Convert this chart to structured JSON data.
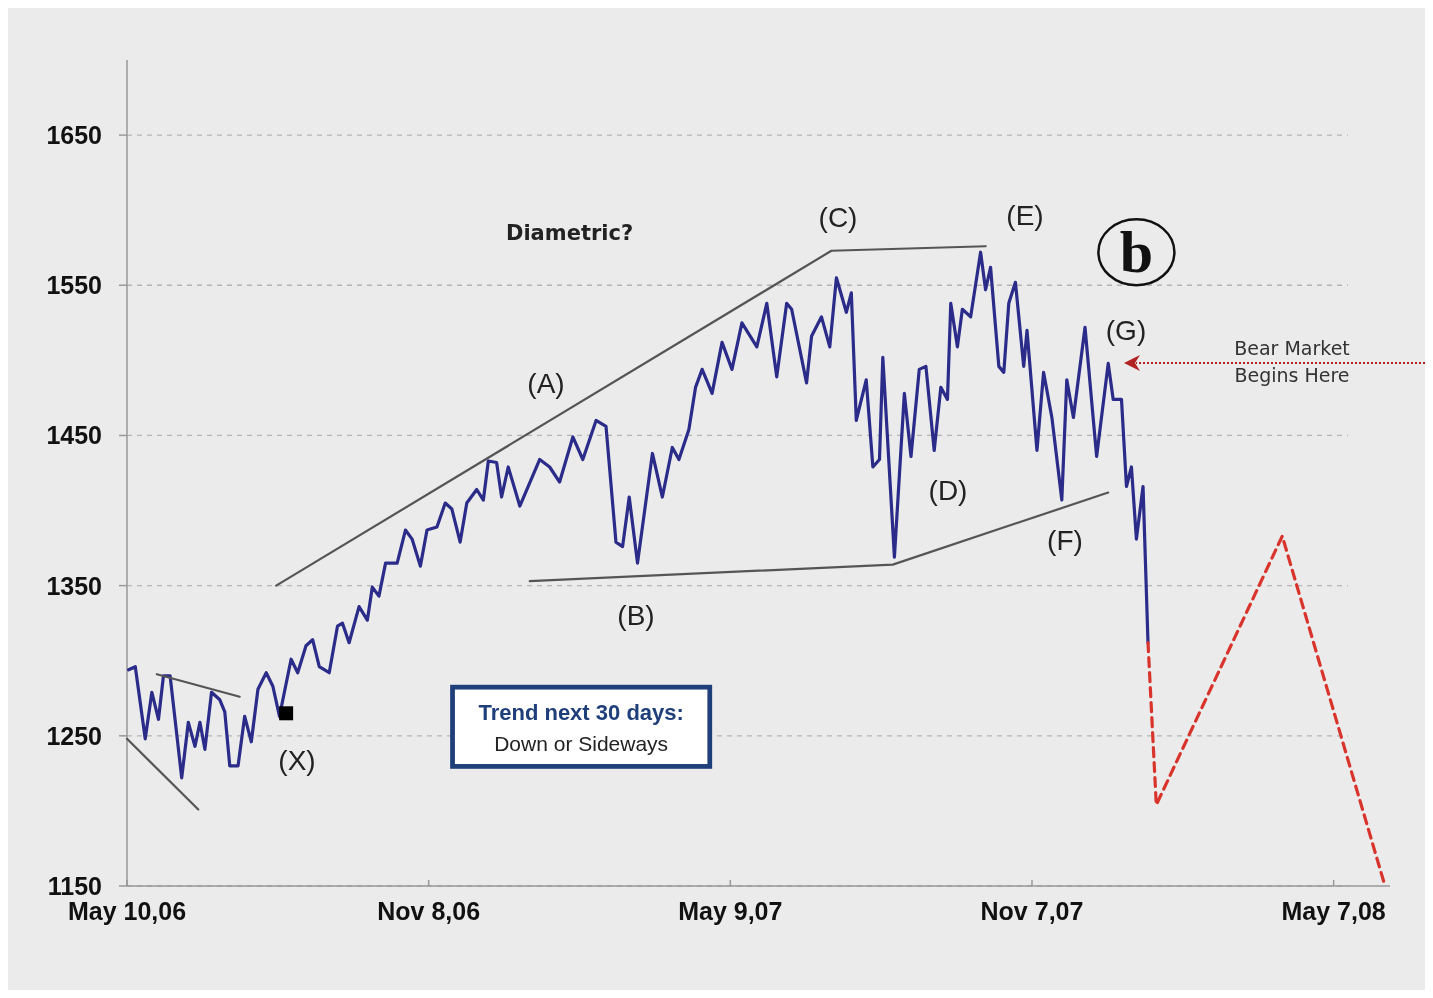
{
  "chart_data": {
    "type": "line",
    "xlim": [
      "2006-05-10",
      "2008-06-10"
    ],
    "ylim": [
      1150,
      1700
    ],
    "xticks": [
      {
        "value": "2006-05-10",
        "label": "May 10,06"
      },
      {
        "value": "2006-11-08",
        "label": "Nov 8,06"
      },
      {
        "value": "2007-05-09",
        "label": "May 9,07"
      },
      {
        "value": "2007-11-07",
        "label": "Nov 7,07"
      },
      {
        "value": "2008-05-07",
        "label": "May 7,08"
      }
    ],
    "yticks": [
      1150,
      1250,
      1350,
      1450,
      1550,
      1650
    ],
    "grid": "y",
    "marker": "none",
    "series": [
      {
        "color": "#2b2b8a",
        "x": [
          "2006-05-11",
          "2006-05-15",
          "2006-05-21",
          "2006-05-25",
          "2006-05-29",
          "2006-06-01",
          "2006-06-05",
          "2006-06-12",
          "2006-06-16",
          "2006-06-20",
          "2006-06-23",
          "2006-06-26",
          "2006-06-30",
          "2006-07-05",
          "2006-07-08",
          "2006-07-11",
          "2006-07-16",
          "2006-07-20",
          "2006-07-24",
          "2006-07-28",
          "2006-08-02",
          "2006-08-06",
          "2006-08-10",
          "2006-08-17",
          "2006-08-21",
          "2006-08-26",
          "2006-08-30",
          "2006-09-03",
          "2006-09-09",
          "2006-09-14",
          "2006-09-17",
          "2006-09-21",
          "2006-09-27",
          "2006-10-02",
          "2006-10-05",
          "2006-10-09",
          "2006-10-13",
          "2006-10-20",
          "2006-10-25",
          "2006-10-29",
          "2006-11-03",
          "2006-11-07",
          "2006-11-13",
          "2006-11-18",
          "2006-11-22",
          "2006-11-27",
          "2006-12-01",
          "2006-12-07",
          "2006-12-11",
          "2006-12-14",
          "2006-12-19",
          "2006-12-22",
          "2006-12-26",
          "2007-01-02",
          "2007-01-14",
          "2007-01-20",
          "2007-01-26",
          "2007-02-03",
          "2007-02-09",
          "2007-02-17",
          "2007-02-23",
          "2007-03-01",
          "2007-03-05",
          "2007-03-09",
          "2007-03-14",
          "2007-03-23",
          "2007-03-29",
          "2007-04-04",
          "2007-04-08",
          "2007-04-14",
          "2007-04-18",
          "2007-04-22",
          "2007-04-28",
          "2007-05-04",
          "2007-05-10",
          "2007-05-16",
          "2007-05-25",
          "2007-05-31",
          "2007-06-06",
          "2007-06-12",
          "2007-06-15",
          "2007-06-24",
          "2007-06-27",
          "2007-07-03",
          "2007-07-08",
          "2007-07-12",
          "2007-07-18",
          "2007-07-21",
          "2007-07-24",
          "2007-07-30",
          "2007-08-03",
          "2007-08-07",
          "2007-08-09",
          "2007-08-16",
          "2007-08-22",
          "2007-08-26",
          "2007-08-31",
          "2007-09-04",
          "2007-09-09",
          "2007-09-13",
          "2007-09-17",
          "2007-09-19",
          "2007-09-23",
          "2007-09-26",
          "2007-10-01",
          "2007-10-07",
          "2007-10-10",
          "2007-10-13",
          "2007-10-18",
          "2007-10-21",
          "2007-10-24",
          "2007-10-28",
          "2007-11-02",
          "2007-11-04",
          "2007-11-10",
          "2007-11-14",
          "2007-11-19",
          "2007-11-25",
          "2007-11-28",
          "2007-12-02",
          "2007-12-09",
          "2007-12-16",
          "2007-12-23",
          "2007-12-26",
          "2007-12-31",
          "2008-01-03",
          "2008-01-06",
          "2008-01-09",
          "2008-01-13",
          "2008-01-16"
        ],
        "values": [
          1294,
          1296,
          1248,
          1279,
          1261,
          1290,
          1290,
          1222,
          1259,
          1243,
          1259,
          1241,
          1279,
          1274,
          1266,
          1230,
          1230,
          1263,
          1246,
          1281,
          1292,
          1283,
          1263,
          1301,
          1292,
          1310,
          1314,
          1296,
          1292,
          1323,
          1325,
          1312,
          1336,
          1327,
          1349,
          1343,
          1365,
          1365,
          1387,
          1381,
          1363,
          1387,
          1389,
          1405,
          1401,
          1379,
          1405,
          1414,
          1407,
          1433,
          1432,
          1409,
          1429,
          1403,
          1434,
          1429,
          1419,
          1449,
          1434,
          1460,
          1456,
          1379,
          1376,
          1409,
          1365,
          1438,
          1409,
          1442,
          1434,
          1454,
          1482,
          1494,
          1478,
          1512,
          1494,
          1525,
          1509,
          1538,
          1489,
          1538,
          1534,
          1485,
          1516,
          1529,
          1509,
          1555,
          1532,
          1545,
          1460,
          1487,
          1429,
          1434,
          1502,
          1369,
          1478,
          1436,
          1494,
          1496,
          1440,
          1482,
          1474,
          1538,
          1509,
          1534,
          1529,
          1572,
          1547,
          1562,
          1496,
          1492,
          1538,
          1552,
          1496,
          1520,
          1440,
          1492,
          1462,
          1407,
          1487,
          1462,
          1522,
          1436,
          1498,
          1474,
          1474,
          1416,
          1429,
          1381,
          1416,
          1312
        ]
      },
      {
        "color": "#d9342b",
        "line_style": "dashed",
        "x": [
          "2008-01-16",
          "2008-01-21",
          "2008-04-06",
          "2008-06-07"
        ],
        "values": [
          1312,
          1204,
          1383,
          1150
        ]
      },
      {
        "color": "#555555",
        "x": [
          "2006-05-10",
          "2006-06-22"
        ],
        "values": [
          1248,
          1201
        ]
      },
      {
        "color": "#555555",
        "x": [
          "2006-05-28",
          "2006-07-17"
        ],
        "values": [
          1291,
          1276
        ]
      },
      {
        "color": "#555555",
        "x": [
          "2006-08-08",
          "2007-07-09",
          "2007-10-10"
        ],
        "values": [
          1350,
          1573,
          1576
        ]
      },
      {
        "color": "#555555",
        "x": [
          "2007-01-08",
          "2007-08-15",
          "2007-12-23"
        ],
        "values": [
          1353,
          1364,
          1412
        ]
      },
      {
        "type": "scatter",
        "marker": "square",
        "color": "#000000",
        "x": [
          "2006-08-14"
        ],
        "values": [
          1265
        ]
      }
    ],
    "annotations": [
      "(A)",
      "(B)",
      "(C)",
      "(D)",
      "(E)",
      "(F)",
      "(G)",
      "(X)",
      "Bear Market Begins Here",
      "Diametric?",
      "b",
      "Trend next 30 days:",
      "Down or Sideways"
    ]
  }
}
